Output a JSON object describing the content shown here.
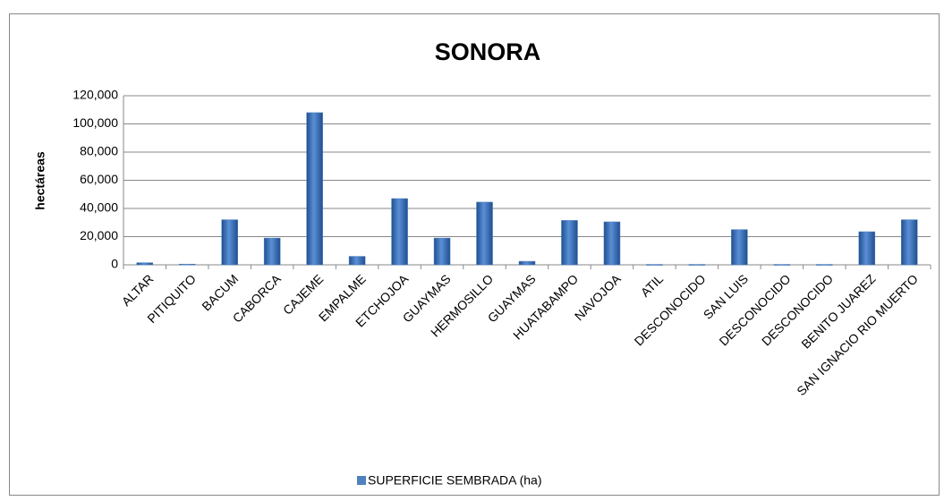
{
  "chart_data": {
    "type": "bar",
    "title": "SONORA",
    "y_label": "hectáreas",
    "categories": [
      "ALTAR",
      "PITIQUITO",
      "BACUM",
      "CABORCA",
      "CAJEME",
      "EMPALME",
      "ETCHOJOA",
      "GUAYMAS",
      "HERMOSILLO",
      "GUAYMAS",
      "HUATABAMPO",
      "NAVOJOA",
      "ATIL",
      "DESCONOCIDO",
      "SAN LUIS",
      "DESCONOCIDO",
      "DESCONOCIDO",
      "BENITO JUAREZ",
      "SAN IGNACIO RIO MUERTO"
    ],
    "series": [
      {
        "name": "SUPERFICIE SEMBRADA (ha)",
        "color": "#4f81bd",
        "values": [
          1500,
          500,
          32000,
          19000,
          108000,
          6000,
          47000,
          19000,
          44500,
          2500,
          31500,
          30500,
          300,
          300,
          25000,
          300,
          300,
          23500,
          32000
        ]
      }
    ],
    "ylim": [
      0,
      120000
    ],
    "yticks": [
      0,
      {
        "value": 20000,
        "label": "20,000"
      },
      {
        "value": 40000,
        "label": "40,000"
      },
      {
        "value": 60000,
        "label": "60,000"
      },
      {
        "value": 80000,
        "label": "80,000"
      },
      {
        "value": 100000,
        "label": "100,000"
      },
      {
        "value": 120000,
        "label": "120,000"
      }
    ],
    "grid": true
  }
}
